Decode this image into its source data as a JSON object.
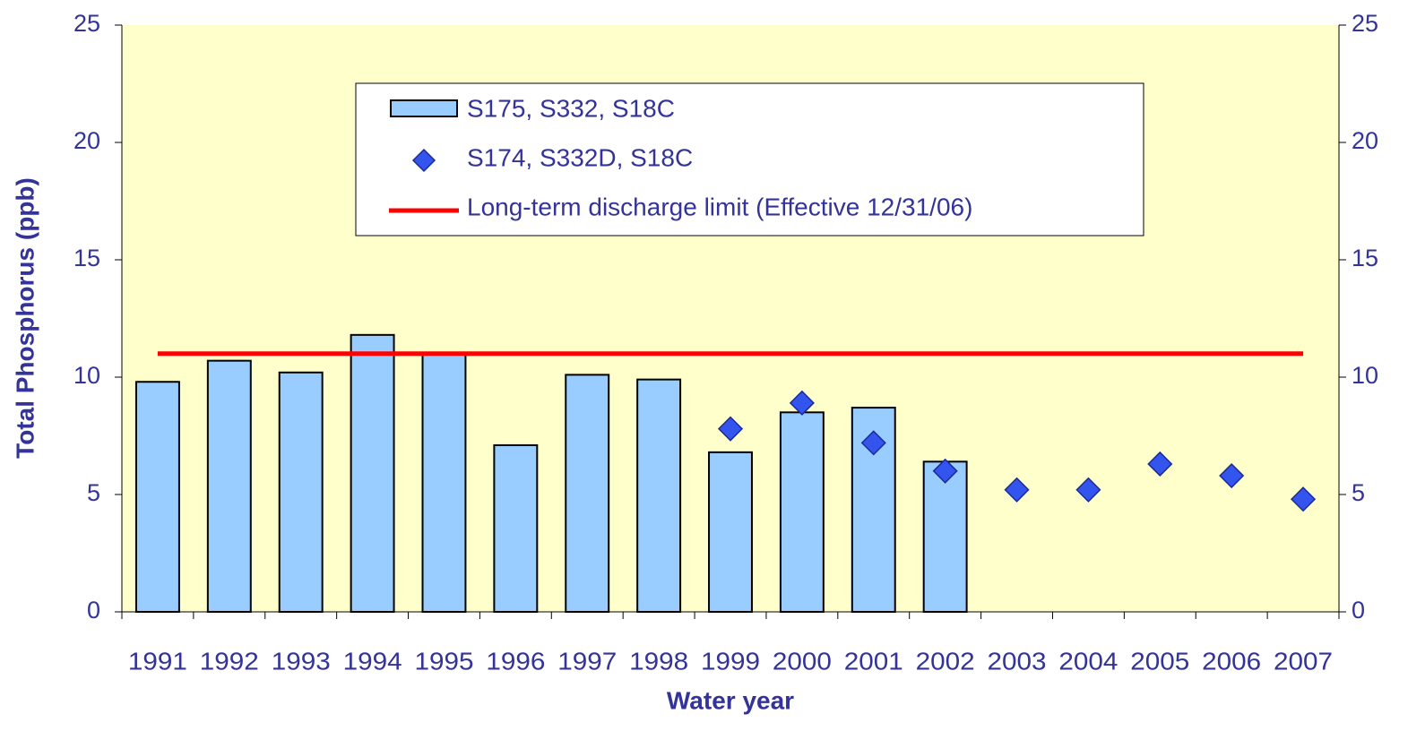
{
  "chart_data": {
    "type": "bar",
    "x_label": "Water year",
    "y_label": "Total Phosphorus (ppb)",
    "categories": [
      "1991",
      "1992",
      "1993",
      "1994",
      "1995",
      "1996",
      "1997",
      "1998",
      "1999",
      "2000",
      "2001",
      "2002",
      "2003",
      "2004",
      "2005",
      "2006",
      "2007"
    ],
    "series": [
      {
        "name": "S175, S332, S18C",
        "type": "bar",
        "color": "#99ccff",
        "values": [
          9.8,
          10.7,
          10.2,
          11.8,
          11.0,
          7.1,
          10.1,
          9.9,
          6.8,
          8.5,
          8.7,
          6.4,
          null,
          null,
          null,
          null,
          null
        ]
      },
      {
        "name": "S174, S332D, S18C",
        "type": "scatter",
        "color": "#3355ee",
        "values": [
          null,
          null,
          null,
          null,
          null,
          null,
          null,
          null,
          7.8,
          8.9,
          7.2,
          6.0,
          5.2,
          5.2,
          6.3,
          5.8,
          4.8
        ]
      },
      {
        "name": "Long-term discharge limit (Effective 12/31/06)",
        "type": "line",
        "color": "#ff0000",
        "values": [
          11,
          11,
          11,
          11,
          11,
          11,
          11,
          11,
          11,
          11,
          11,
          11,
          11,
          11,
          11,
          11,
          11
        ]
      }
    ],
    "ylim": [
      0,
      25
    ],
    "yticks": [
      0,
      5,
      10,
      15,
      20,
      25
    ],
    "y2lim": [
      0,
      25
    ],
    "y2ticks": [
      0,
      5,
      10,
      15,
      20,
      25
    ],
    "background": "#ffffcc",
    "legend": "upper center"
  }
}
